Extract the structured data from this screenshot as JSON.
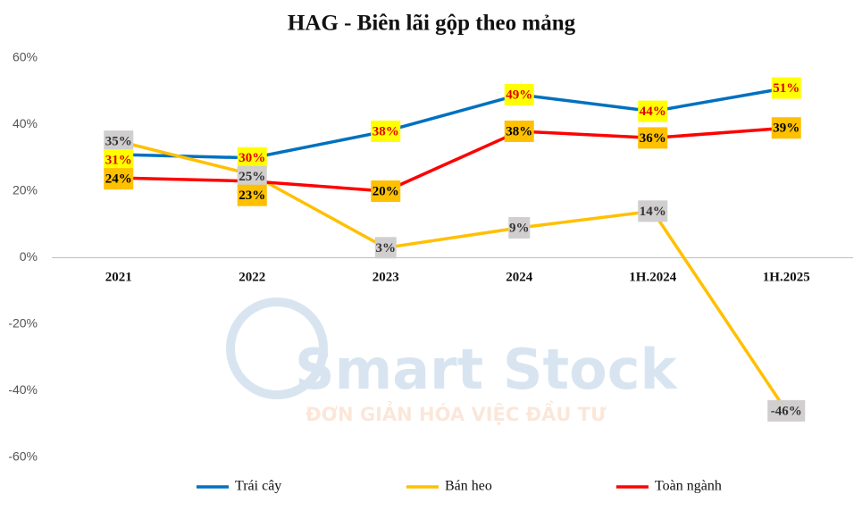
{
  "chart_data": {
    "type": "line",
    "title": "HAG - Biên lãi gộp theo mảng",
    "categories": [
      "2021",
      "2022",
      "2023",
      "2024",
      "1H.2024",
      "1H.2025"
    ],
    "ylim": [
      -60,
      60
    ],
    "yticks": [
      {
        "value": -60,
        "label": "-60%"
      },
      {
        "value": -40,
        "label": "-40%"
      },
      {
        "value": -20,
        "label": "-20%"
      },
      {
        "value": 0,
        "label": "0%"
      },
      {
        "value": 20,
        "label": "20%"
      },
      {
        "value": 40,
        "label": "40%"
      },
      {
        "value": 60,
        "label": "60%"
      }
    ],
    "grid": false,
    "legend": "bottom",
    "watermark": {
      "title": "Smart Stock",
      "tagline": "ĐƠN GIẢN HÓA VIỆC ĐẦU TƯ"
    },
    "series": [
      {
        "name": "Trái cây",
        "color": "#0070c0",
        "label_fill": "#ffff00",
        "label_color": "#e00000",
        "values": [
          31,
          30,
          38,
          49,
          44,
          51
        ],
        "value_labels": [
          "31%",
          "30%",
          "38%",
          "49%",
          "44%",
          "51%"
        ]
      },
      {
        "name": "Bán heo",
        "color": "#ffc000",
        "label_fill": "#d0cece",
        "label_color": "#333333",
        "values": [
          35,
          25,
          3,
          9,
          14,
          -46
        ],
        "value_labels": [
          "35%",
          "25%",
          "3%",
          "9%",
          "14%",
          "-46%"
        ]
      },
      {
        "name": "Toàn ngành",
        "color": "#ff0000",
        "label_fill": "#ffc000",
        "label_color": "#000000",
        "values": [
          24,
          23,
          20,
          38,
          36,
          39
        ],
        "value_labels": [
          "24%",
          "23%",
          "20%",
          "38%",
          "36%",
          "39%"
        ]
      }
    ]
  }
}
